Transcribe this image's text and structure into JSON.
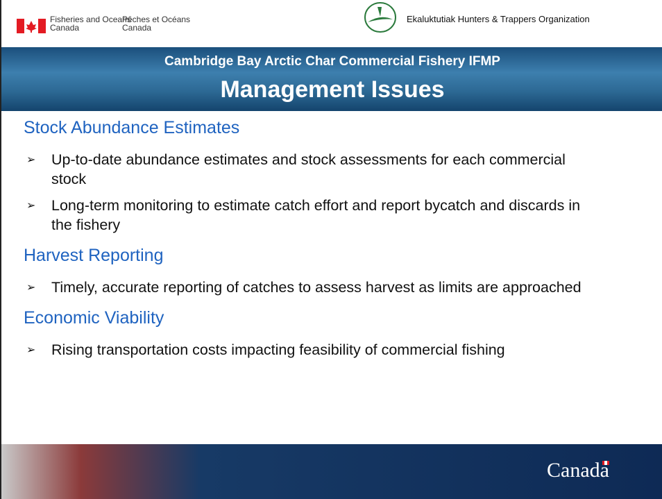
{
  "header": {
    "department_en": [
      "Fisheries and Oceans",
      "Canada"
    ],
    "department_fr": [
      "Pêches et Océans",
      "Canada"
    ],
    "organization": "Ekaluktutiak Hunters & Trappers Organization"
  },
  "banner": {
    "subtitle": "Cambridge Bay Arctic Char Commercial Fishery IFMP",
    "title": "Management Issues"
  },
  "sections": [
    {
      "heading": "Stock Abundance Estimates",
      "bullets": [
        "Up-to-date abundance estimates and stock assessments for each commercial stock",
        "Long-term monitoring to estimate catch effort and report bycatch and discards in the fishery"
      ]
    },
    {
      "heading": "Harvest Reporting",
      "bullets": [
        "Timely, accurate reporting of catches to assess harvest as limits are approached"
      ]
    },
    {
      "heading": "Economic Viability",
      "bullets": [
        "Rising transportation costs impacting feasibility of commercial fishing"
      ]
    }
  ],
  "footer": {
    "wordmark": "Canada"
  }
}
